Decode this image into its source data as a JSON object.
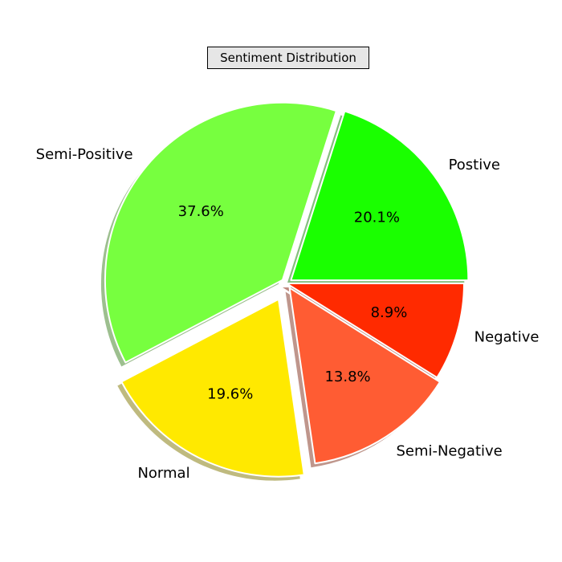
{
  "chart_data": {
    "type": "pie",
    "title": "Sentiment Distribution",
    "categories": [
      "Postive",
      "Semi-Positive",
      "Normal",
      "Semi-Negative",
      "Negative"
    ],
    "values": [
      20.1,
      37.6,
      19.6,
      13.8,
      8.9
    ],
    "value_labels": [
      "20.1%",
      "37.6%",
      "19.6%",
      "13.8%",
      "8.9%"
    ],
    "colors": [
      "#1aff00",
      "#77ff3f",
      "#ffe900",
      "#ff5c33",
      "#ff2a00"
    ],
    "explode": [
      0.03,
      0.03,
      0.1,
      0.03,
      0
    ],
    "start_angle_deg": 0,
    "direction": "counterclockwise",
    "shadow": true,
    "legend": false
  }
}
